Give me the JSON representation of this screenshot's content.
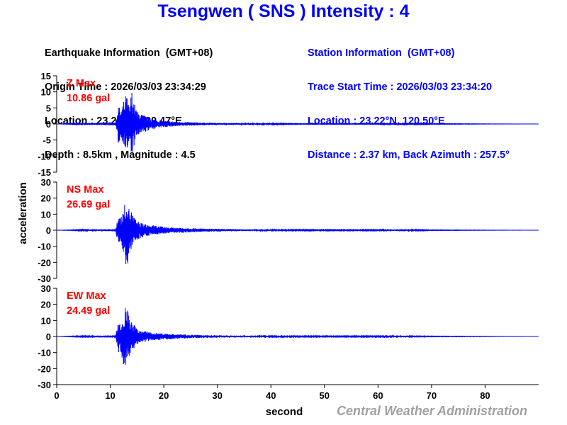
{
  "title": "Tsengwen ( SNS ) Intensity : 4",
  "earthquake_info": [
    "Earthquake Information  (GMT+08)",
    "Origin Time : 2026/03/03 23:34:29",
    "Location : 23.22°N, 120.47°E",
    "Depth : 8.5km , Magnitude : 4.5"
  ],
  "station_info": [
    "Station Information  (GMT+08)",
    "Trace Start Time : 2026/03/03 23:34:20",
    "Location : 23.22°N, 120.50°E",
    "Distance : 2.37 km, Back Azimuth : 257.5°"
  ],
  "credit": "Central Weather Administration",
  "colors": {
    "title": "#0000ff",
    "trace": "#0000ff",
    "max_label": "#ff0000",
    "station_info": "#0000ff"
  },
  "chart_data": {
    "type": "line",
    "xlabel": "second",
    "ylabel": "acceleration",
    "xlim": [
      0,
      90
    ],
    "xticks": [
      0,
      10,
      20,
      30,
      40,
      50,
      60,
      70,
      80
    ],
    "panels": [
      {
        "name": "Z",
        "max_label": "Z Max",
        "max_value": "10.86 gal",
        "ylim": [
          -15,
          15
        ],
        "yticks": [
          15,
          10,
          5,
          0,
          -5,
          -10,
          -15
        ],
        "x": [
          0,
          11.0,
          11.5,
          12.0,
          12.5,
          13.0,
          13.6,
          14.0,
          14.6,
          15.0,
          16.0,
          17.0,
          18.0,
          19.0,
          20.0,
          22.0,
          24.0,
          26.0,
          28.0,
          30.0,
          33.0,
          36.0,
          40.0,
          45.0,
          50.0,
          55.0,
          60.0,
          63.0,
          64.0,
          65.0,
          66.0,
          67.0,
          70.0,
          89.0
        ],
        "upper": [
          0,
          0.5,
          6.0,
          4.0,
          7.0,
          9.5,
          5.0,
          10.86,
          6.0,
          4.0,
          3.0,
          2.2,
          1.6,
          1.2,
          1.0,
          0.8,
          0.6,
          0.5,
          0.4,
          0.35,
          0.3,
          0.25,
          0.2,
          0.1,
          0.1,
          0.1,
          0.1,
          0.3,
          0.4,
          0.5,
          0.3,
          0.2,
          0.1,
          0
        ],
        "lower": [
          0,
          -0.5,
          -6.5,
          -5.0,
          -6.0,
          -9.0,
          -7.0,
          -10.5,
          -6.0,
          -4.0,
          -3.0,
          -2.2,
          -1.6,
          -1.2,
          -1.0,
          -0.8,
          -0.6,
          -0.5,
          -0.4,
          -0.35,
          -0.3,
          -0.25,
          -0.2,
          -0.1,
          -0.1,
          -0.1,
          -0.1,
          -0.3,
          -0.4,
          -0.5,
          -0.3,
          -0.2,
          -0.1,
          0
        ]
      },
      {
        "name": "NS",
        "max_label": "NS Max",
        "max_value": "26.69 gal",
        "ylim": [
          -30,
          30
        ],
        "yticks": [
          30,
          20,
          10,
          0,
          -10,
          -20,
          -30
        ],
        "x": [
          0,
          11.0,
          11.5,
          12.0,
          12.5,
          13.0,
          13.5,
          14.0,
          14.5,
          15.0,
          16.0,
          17.0,
          18.0,
          20.0,
          22.0,
          25.0,
          28.0,
          31.0,
          35.0,
          40.0,
          50.0,
          60.0,
          63.0,
          64.0,
          65.0,
          66.0,
          70.0,
          89.0
        ],
        "upper": [
          0,
          0.8,
          10.0,
          9.0,
          12.0,
          22.0,
          14.0,
          12.0,
          8.0,
          6.0,
          4.5,
          3.5,
          3.0,
          2.2,
          1.8,
          1.4,
          1.0,
          0.8,
          0.6,
          0.4,
          0.3,
          0.3,
          0.5,
          0.6,
          0.7,
          0.4,
          0.2,
          0
        ],
        "lower": [
          0,
          -0.8,
          -9.0,
          -11.0,
          -15.0,
          -26.69,
          -16.0,
          -12.0,
          -8.0,
          -6.0,
          -4.5,
          -3.5,
          -3.0,
          -2.2,
          -1.8,
          -1.4,
          -1.0,
          -0.8,
          -0.6,
          -0.4,
          -0.3,
          -0.3,
          -0.5,
          -0.6,
          -0.7,
          -0.4,
          -0.2,
          0
        ]
      },
      {
        "name": "EW",
        "max_label": "EW Max",
        "max_value": "24.49 gal",
        "ylim": [
          -30,
          30
        ],
        "yticks": [
          30,
          20,
          10,
          0,
          -10,
          -20,
          -30
        ],
        "x": [
          0,
          11.0,
          11.5,
          12.0,
          12.5,
          13.0,
          13.5,
          14.0,
          14.5,
          15.0,
          16.0,
          17.0,
          18.0,
          20.0,
          22.0,
          25.0,
          28.0,
          31.0,
          35.0,
          40.0,
          50.0,
          60.0,
          63.0,
          64.0,
          65.0,
          66.0,
          70.0,
          89.0
        ],
        "upper": [
          0,
          0.8,
          9.0,
          7.0,
          10.0,
          24.49,
          12.0,
          9.0,
          7.0,
          5.0,
          4.0,
          3.0,
          2.5,
          2.0,
          1.5,
          1.1,
          0.9,
          0.7,
          0.5,
          0.4,
          0.3,
          0.3,
          0.4,
          0.5,
          0.6,
          0.3,
          0.2,
          0
        ],
        "lower": [
          0,
          -0.8,
          -10.0,
          -12.0,
          -18.0,
          -18.0,
          -14.0,
          -10.0,
          -7.0,
          -5.0,
          -4.0,
          -3.0,
          -2.5,
          -2.0,
          -1.5,
          -1.1,
          -0.9,
          -0.7,
          -0.5,
          -0.4,
          -0.3,
          -0.3,
          -0.4,
          -0.5,
          -0.6,
          -0.3,
          -0.2,
          0
        ]
      }
    ]
  }
}
